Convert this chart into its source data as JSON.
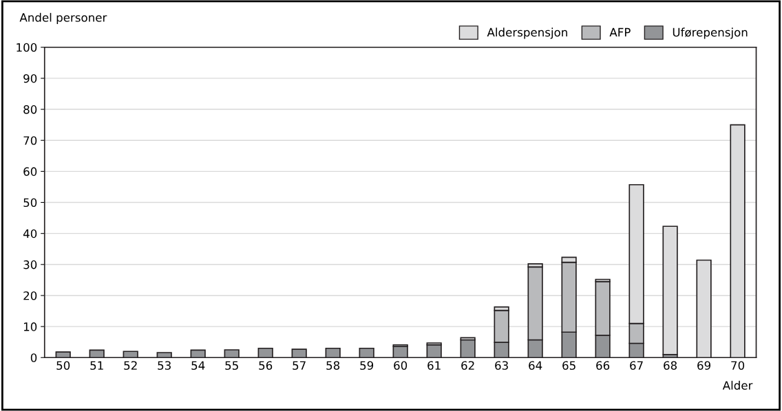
{
  "chart_data": {
    "type": "bar",
    "stacked": true,
    "ylabel": "Andel personer",
    "xlabel": "Alder",
    "categories": [
      "50",
      "51",
      "52",
      "53",
      "54",
      "55",
      "56",
      "57",
      "58",
      "59",
      "60",
      "61",
      "62",
      "63",
      "64",
      "65",
      "66",
      "67",
      "68",
      "69",
      "70"
    ],
    "series": [
      {
        "name": "Uførepensjon",
        "color": "#939598",
        "values": [
          1.8,
          2.4,
          2.0,
          1.6,
          2.4,
          2.5,
          3.0,
          2.7,
          3.0,
          3.0,
          3.6,
          4.1,
          5.7,
          4.9,
          5.7,
          8.2,
          7.2,
          4.6,
          1.0,
          null,
          null
        ]
      },
      {
        "name": "AFP",
        "color": "#b9babc",
        "values": [
          null,
          null,
          null,
          null,
          null,
          null,
          null,
          null,
          null,
          null,
          0.5,
          0.6,
          null,
          10.3,
          23.5,
          22.5,
          17.3,
          6.4,
          null,
          null,
          null
        ]
      },
      {
        "name": "Alderspensjon",
        "color": "#dcdcdd",
        "values": [
          null,
          null,
          null,
          null,
          null,
          null,
          null,
          null,
          null,
          null,
          null,
          null,
          0.7,
          1.1,
          1.0,
          1.6,
          0.7,
          44.7,
          41.3,
          31.4,
          75.0
        ]
      }
    ],
    "ylim": [
      0,
      100
    ],
    "yticks": [
      0,
      10,
      20,
      30,
      40,
      50,
      60,
      70,
      80,
      90,
      100
    ],
    "grid": "y",
    "legend": "top right"
  }
}
